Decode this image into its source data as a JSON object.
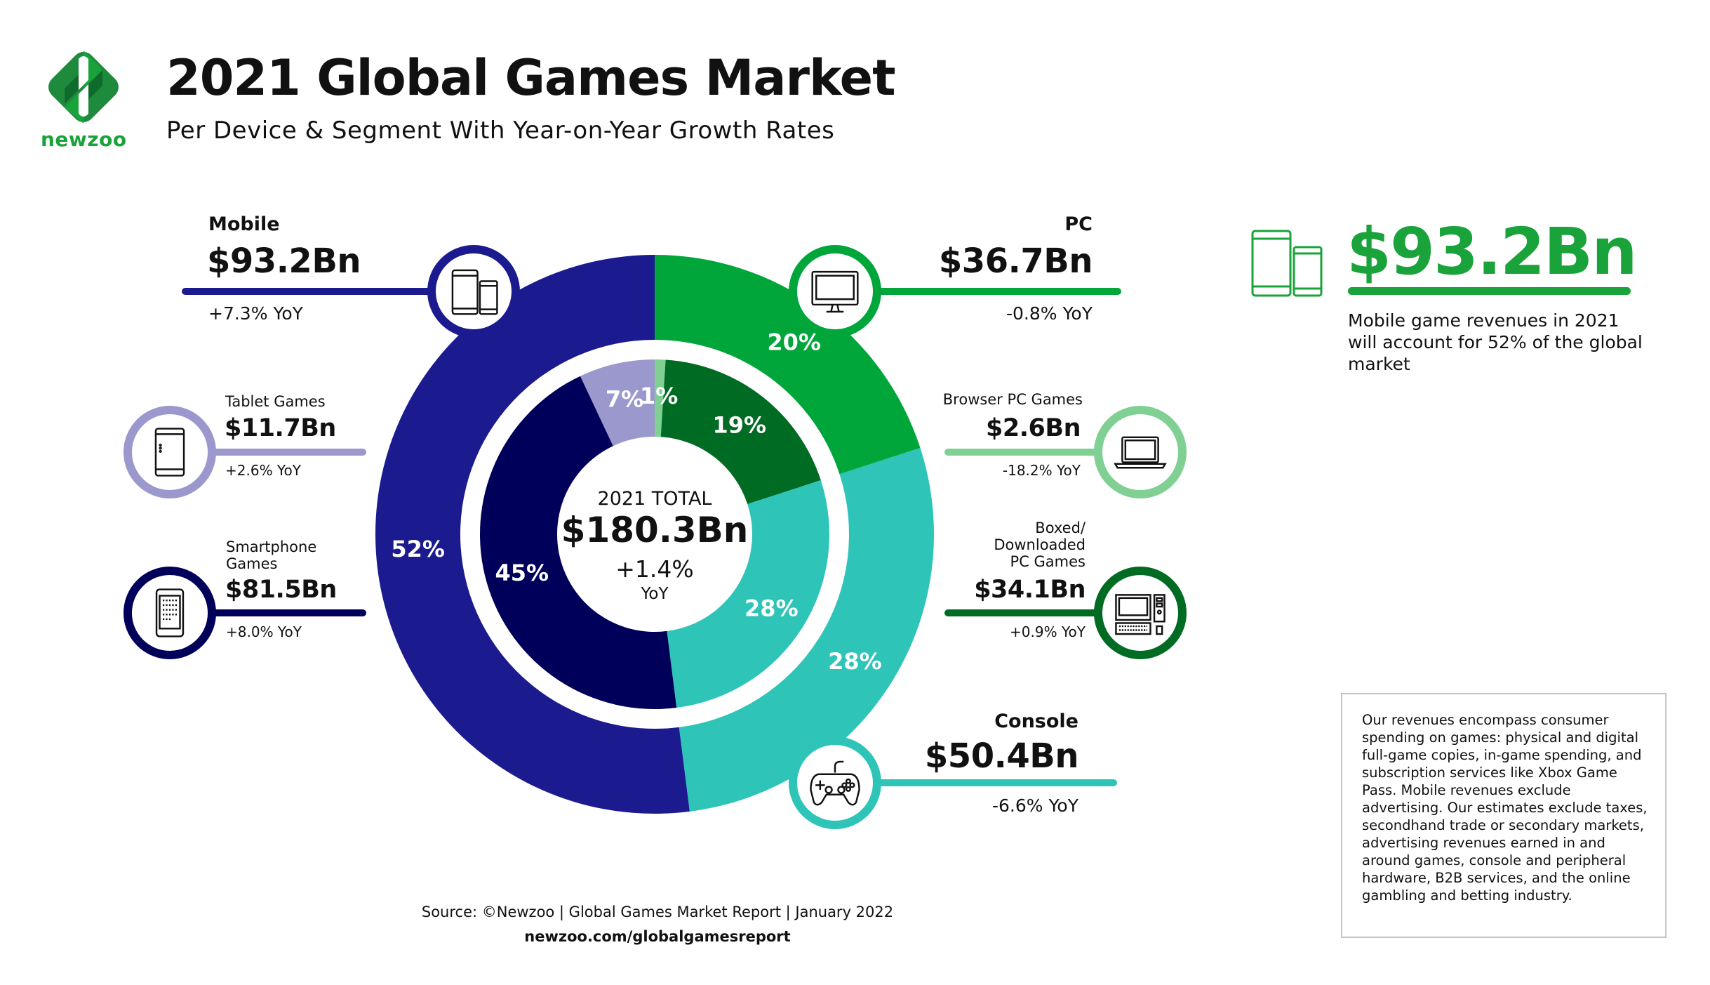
{
  "header": {
    "logo_text": "newzoo",
    "title": "2021 Global Games Market",
    "subtitle": "Per Device & Segment With Year-on-Year Growth Rates"
  },
  "colors": {
    "mobile": "#1b1a8e",
    "smartphone": "#00005a",
    "tablet": "#9a98cc",
    "pc": "#00a63a",
    "browser_pc": "#80d094",
    "boxed_pc": "#006b22",
    "console": "#2ec4b8",
    "brand_green": "#1aa33a"
  },
  "segments": {
    "mobile": {
      "title": "Mobile",
      "value": "$93.2Bn",
      "yoy": "+7.3% YoY",
      "icon": "mobile-devices-icon"
    },
    "tablet": {
      "title": "Tablet Games",
      "value": "$11.7Bn",
      "yoy": "+2.6% YoY",
      "icon": "tablet-icon"
    },
    "smartphone": {
      "title_line1": "Smartphone",
      "title_line2": "Games",
      "value": "$81.5Bn",
      "yoy": "+8.0% YoY",
      "icon": "smartphone-icon"
    },
    "pc": {
      "title": "PC",
      "value": "$36.7Bn",
      "yoy": "-0.8% YoY",
      "icon": "monitor-icon"
    },
    "browser_pc": {
      "title": "Browser PC Games",
      "value": "$2.6Bn",
      "yoy": "-18.2% YoY",
      "icon": "laptop-icon"
    },
    "boxed_pc": {
      "title_line1": "Boxed/",
      "title_line2": "Downloaded",
      "title_line3": "PC Games",
      "value": "$34.1Bn",
      "yoy": "+0.9% YoY",
      "icon": "desktop-computer-icon"
    },
    "console": {
      "title": "Console",
      "value": "$50.4Bn",
      "yoy": "-6.6% YoY",
      "icon": "gamepad-icon"
    }
  },
  "chart_data": {
    "type": "pie",
    "center": {
      "label": "2021 TOTAL",
      "value": "$180.3Bn",
      "growth": "+1.4%",
      "growth_unit": "YoY"
    },
    "outer_ring": [
      {
        "name": "PC",
        "percent": 20,
        "value_bn": 36.7,
        "label": "20%",
        "color": "#00a63a"
      },
      {
        "name": "Console",
        "percent": 28,
        "value_bn": 50.4,
        "label": "28%",
        "color": "#2ec4b8"
      },
      {
        "name": "Mobile",
        "percent": 52,
        "value_bn": 93.2,
        "label": "52%",
        "color": "#1b1a8e"
      }
    ],
    "inner_ring": [
      {
        "name": "Browser PC Games",
        "percent": 1,
        "value_bn": 2.6,
        "label": "1%",
        "color": "#80d094"
      },
      {
        "name": "Boxed/Downloaded PC Games",
        "percent": 19,
        "value_bn": 34.1,
        "label": "19%",
        "color": "#006b22"
      },
      {
        "name": "Console",
        "percent": 28,
        "value_bn": 50.4,
        "label": "28%",
        "color": "#2ec4b8"
      },
      {
        "name": "Smartphone Games",
        "percent": 45,
        "value_bn": 81.5,
        "label": "45%",
        "color": "#00005a"
      },
      {
        "name": "Tablet Games",
        "percent": 7,
        "value_bn": 11.7,
        "label": "7%",
        "color": "#9a98cc"
      }
    ]
  },
  "callout": {
    "value": "$93.2Bn",
    "text": "Mobile game revenues in 2021 will account for 52% of the global market"
  },
  "note": "Our revenues encompass consumer spending on games: physical and digital full-game copies, in-game spending, and subscription services like Xbox Game Pass. Mobile revenues exclude advertising. Our estimates exclude taxes, secondhand trade or secondary markets, advertising revenues earned in and around games, console and peripheral hardware, B2B services, and the online gambling and betting industry.",
  "footer": {
    "source": "Source: ©Newzoo | Global Games Market Report | January 2022",
    "url": "newzoo.com/globalgamesreport"
  }
}
